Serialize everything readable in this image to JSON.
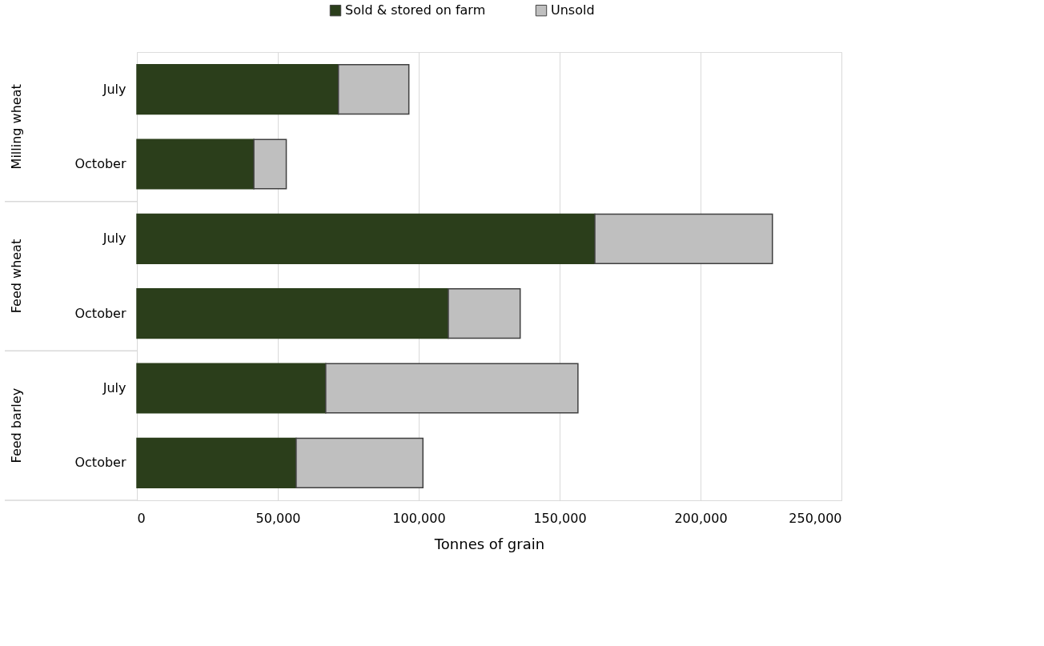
{
  "chart_data": {
    "type": "bar",
    "orientation": "horizontal",
    "stacked": true,
    "xlabel": "Tonnes of grain",
    "categories": [
      "July",
      "October",
      "July",
      "October",
      "July",
      "October"
    ],
    "annotations": [
      "Milling wheat",
      "Feed wheat",
      "Feed barley"
    ],
    "series": [
      {
        "name": "Sold & stored on farm",
        "color": "#2b3e1b",
        "values": [
          71500,
          41500,
          162500,
          110500,
          67000,
          56500
        ]
      },
      {
        "name": "Unsold",
        "color": "#bfbfbf",
        "values": [
          25000,
          11500,
          63000,
          25500,
          89500,
          45000
        ]
      }
    ],
    "xlim": [
      0,
      250000
    ],
    "xticks": [
      0,
      {
        "value": 50000,
        "label": "50,000"
      },
      {
        "value": 100000,
        "label": "100,000"
      },
      {
        "value": 150000,
        "label": "150,000"
      },
      {
        "value": 200000,
        "label": "200,000"
      },
      {
        "value": 250000,
        "label": "250,000"
      }
    ],
    "grid": "x",
    "legend": "top"
  }
}
